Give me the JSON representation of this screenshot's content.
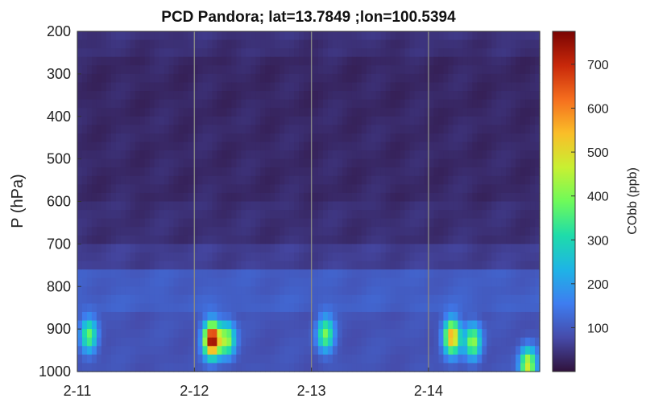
{
  "chart_data": {
    "type": "heatmap",
    "title": "PCD Pandora; lat=13.7849 ;lon=100.5394",
    "xlabel": "",
    "ylabel": "P (hPa)",
    "x_ticks": [
      "2-11",
      "2-12",
      "2-13",
      "2-14"
    ],
    "y_ticks": [
      200,
      300,
      400,
      500,
      600,
      700,
      800,
      900,
      1000
    ],
    "ylim": [
      200,
      1000
    ],
    "y_reversed": true,
    "x_range_days": [
      0,
      3.95
    ],
    "vertical_gridlines_at_days": [
      1,
      2,
      3
    ],
    "colorbar": {
      "label": "CObb (ppb)",
      "ticks": [
        100,
        200,
        300,
        400,
        500,
        600,
        700
      ],
      "range": [
        0,
        775
      ],
      "colormap": "turbo"
    },
    "pressure_layers": [
      {
        "top": 200,
        "bottom": 225,
        "background": 45
      },
      {
        "top": 225,
        "bottom": 270,
        "background": 40
      },
      {
        "top": 270,
        "bottom": 400,
        "background": 30
      },
      {
        "top": 400,
        "bottom": 600,
        "background": 32
      },
      {
        "top": 600,
        "bottom": 700,
        "background": 40
      },
      {
        "top": 700,
        "bottom": 770,
        "background": 60
      },
      {
        "top": 770,
        "bottom": 830,
        "background": 105
      },
      {
        "top": 830,
        "bottom": 870,
        "background": 110
      },
      {
        "top": 870,
        "bottom": 1000,
        "background": 90
      }
    ],
    "plumes": [
      {
        "day": 0.1,
        "pressure": 915,
        "peak": 380
      },
      {
        "day": 1.15,
        "pressure": 925,
        "peak": 775
      },
      {
        "day": 1.28,
        "pressure": 925,
        "peak": 420
      },
      {
        "day": 2.12,
        "pressure": 912,
        "peak": 390
      },
      {
        "day": 3.2,
        "pressure": 918,
        "peak": 580
      },
      {
        "day": 3.38,
        "pressure": 930,
        "peak": 420
      },
      {
        "day": 3.85,
        "pressure": 985,
        "peak": 480
      }
    ]
  }
}
